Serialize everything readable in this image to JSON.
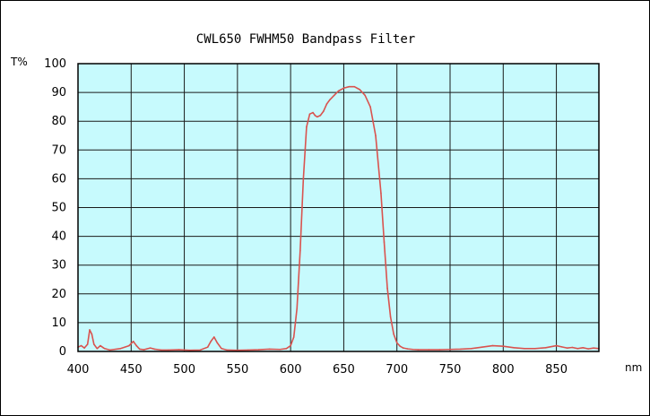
{
  "chart_data": {
    "type": "line",
    "title": "CWL650 FWHM50 Bandpass Filter",
    "ylabel": "T%",
    "xlabel": "nm",
    "xlim": [
      400,
      890
    ],
    "ylim": [
      0,
      100
    ],
    "xticks": [
      400,
      450,
      500,
      550,
      600,
      650,
      700,
      750,
      800,
      850
    ],
    "yticks": [
      0,
      10,
      20,
      30,
      40,
      50,
      60,
      70,
      80,
      90,
      100
    ],
    "grid": true,
    "plot_background": "#c7fafd",
    "line_color": "#d9534f",
    "series": [
      {
        "x": [
          400,
          403,
          406,
          409,
          411,
          413,
          415,
          418,
          421,
          425,
          430,
          440,
          448,
          452,
          455,
          458,
          462,
          468,
          472,
          478,
          485,
          495,
          505,
          515,
          522,
          525,
          528,
          531,
          535,
          540,
          550,
          560,
          570,
          580,
          590,
          596,
          600,
          603,
          606,
          609,
          612,
          615,
          618,
          621,
          623,
          625,
          628,
          631,
          634,
          637,
          641,
          645,
          650,
          655,
          660,
          665,
          670,
          675,
          680,
          685,
          688,
          691,
          694,
          697,
          700,
          703,
          706,
          710,
          715,
          720,
          730,
          740,
          750,
          760,
          770,
          780,
          790,
          800,
          810,
          820,
          830,
          840,
          850,
          855,
          860,
          865,
          870,
          875,
          880,
          885,
          890
        ],
        "y": [
          1.5,
          2.0,
          1.2,
          2.5,
          7.5,
          6.0,
          2.5,
          1.0,
          2.0,
          1.0,
          0.5,
          1.0,
          2.0,
          3.5,
          2.0,
          0.8,
          0.6,
          1.2,
          0.8,
          0.5,
          0.5,
          0.6,
          0.4,
          0.5,
          1.5,
          3.5,
          5.0,
          3.0,
          1.0,
          0.5,
          0.4,
          0.5,
          0.6,
          0.8,
          0.7,
          1.0,
          2.0,
          5.0,
          15.0,
          35.0,
          60.0,
          78.0,
          82.5,
          83.0,
          82.0,
          81.5,
          82.0,
          83.5,
          86.0,
          87.5,
          89.0,
          90.5,
          91.5,
          92.0,
          92.0,
          91.0,
          89.0,
          85.0,
          75.0,
          55.0,
          38.0,
          22.0,
          12.0,
          6.0,
          3.0,
          1.8,
          1.2,
          0.9,
          0.7,
          0.6,
          0.6,
          0.6,
          0.7,
          0.8,
          1.0,
          1.5,
          2.0,
          1.8,
          1.3,
          1.0,
          1.0,
          1.3,
          2.0,
          1.6,
          1.2,
          1.4,
          1.0,
          1.3,
          0.9,
          1.2,
          1.0
        ]
      }
    ]
  }
}
